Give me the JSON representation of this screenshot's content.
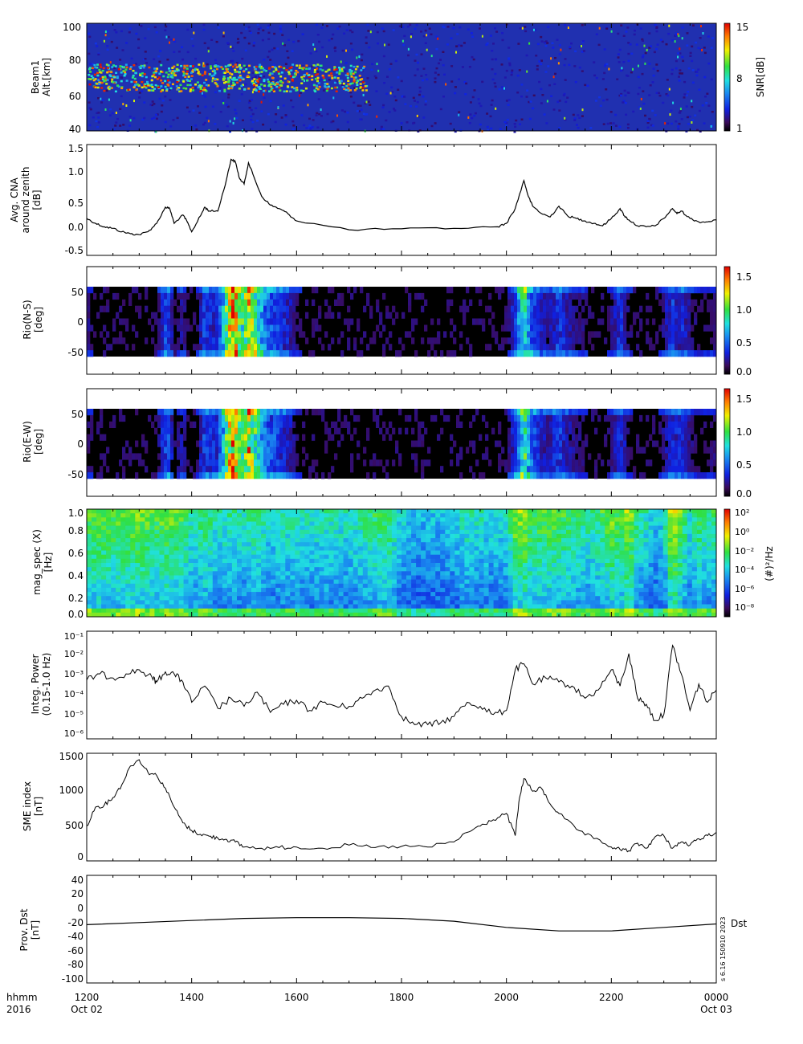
{
  "x_axis": {
    "ticks": [
      "1200",
      "1400",
      "1600",
      "1800",
      "2000",
      "2200",
      "0000"
    ],
    "row_label_top": "hhmm",
    "row_label_bottom": "2016",
    "date_start": "Oct 02",
    "date_end": "Oct 03"
  },
  "panels": {
    "beam": {
      "ylabel": [
        "Beam1",
        "Alt.[km]"
      ],
      "yticks": [
        "40",
        "60",
        "80",
        "100"
      ],
      "colorbar": {
        "label": "SNR[dB]",
        "ticks": [
          "1",
          "8",
          "15"
        ]
      }
    },
    "cna": {
      "ylabel": [
        "Avg. CNA",
        "around zenith",
        "[dB]"
      ],
      "yticks": [
        "-0.5",
        "0.0",
        "0.5",
        "1.0",
        "1.5"
      ]
    },
    "rio_ns": {
      "ylabel": [
        "Rio(N-S)",
        "[deg]"
      ],
      "yticks": [
        "-50",
        "0",
        "50"
      ],
      "colorbar": {
        "ticks": [
          "0.0",
          "0.5",
          "1.0",
          "1.5"
        ]
      }
    },
    "rio_ew": {
      "ylabel": [
        "Rio(E-W)",
        "[deg]"
      ],
      "yticks": [
        "-50",
        "0",
        "50"
      ],
      "colorbar": {
        "ticks": [
          "0.0",
          "0.5",
          "1.0",
          "1.5"
        ]
      }
    },
    "magspec": {
      "ylabel": [
        "mag_spec (X)",
        "[Hz]"
      ],
      "yticks": [
        "0.0",
        "0.2",
        "0.4",
        "0.6",
        "0.8",
        "1.0"
      ],
      "colorbar": {
        "label": "(#)²/Hz",
        "ticks": [
          "10⁻⁸",
          "10⁻⁶",
          "10⁻⁴",
          "10⁻²",
          "10⁰",
          "10²"
        ]
      }
    },
    "power": {
      "ylabel": [
        "Integ. Power",
        "(0.15-1.0 Hz)"
      ],
      "yticks": [
        "10⁻⁶",
        "10⁻⁵",
        "10⁻⁴",
        "10⁻³",
        "10⁻²",
        "10⁻¹"
      ]
    },
    "sme": {
      "ylabel": [
        "SME index",
        "[nT]"
      ],
      "yticks": [
        "0",
        "500",
        "1000",
        "1500"
      ]
    },
    "dst": {
      "ylabel": [
        "Prov. Dst",
        "[nT]"
      ],
      "yticks": [
        "-100",
        "-80",
        "-60",
        "-40",
        "-20",
        "0",
        "20",
        "40"
      ],
      "series_label": "Dst",
      "side_text": "s 6.16 150910 2023"
    }
  },
  "chart_data": [
    {
      "type": "heatmap",
      "ylabel": "Beam1 Alt.[km]",
      "ylim": [
        38,
        102
      ],
      "colorbar": {
        "label": "SNR[dB]",
        "range": [
          0,
          16
        ]
      },
      "description_values": {
        "high_snr_band_alt_km": [
          62,
          78
        ],
        "high_snr_band_time_hhmm": [
          "1200",
          "1720"
        ]
      }
    },
    {
      "type": "line",
      "ylabel": "Avg. CNA around zenith [dB]",
      "ylim": [
        -0.6,
        1.65
      ],
      "x": [
        "1200",
        "1210",
        "1220",
        "1230",
        "1240",
        "1250",
        "1300",
        "1310",
        "1320",
        "1330",
        "1335",
        "1340",
        "1350",
        "1355",
        "1400",
        "1410",
        "1415",
        "1420",
        "1430",
        "1440",
        "1445",
        "1450",
        "1455",
        "1500",
        "1505",
        "1510",
        "1520",
        "1530",
        "1540",
        "1550",
        "1600",
        "1700",
        "1800",
        "1900",
        "1950",
        "2000",
        "2010",
        "2020",
        "2025",
        "2030",
        "2040",
        "2050",
        "2100",
        "2110",
        "2120",
        "2130",
        "2140",
        "2150",
        "2200",
        "2210",
        "2215",
        "2220",
        "2230",
        "2240",
        "2250",
        "2300",
        "2310",
        "2315",
        "2320",
        "2330",
        "2340",
        "2350",
        "2400"
      ],
      "y": [
        0.15,
        0.05,
        -0.02,
        -0.05,
        -0.12,
        -0.16,
        -0.18,
        -0.12,
        0.05,
        0.38,
        0.35,
        0.05,
        0.22,
        0.08,
        -0.12,
        0.2,
        0.38,
        0.3,
        0.3,
        0.95,
        1.35,
        1.3,
        0.95,
        0.85,
        1.28,
        1.05,
        0.6,
        0.42,
        0.35,
        0.25,
        0.1,
        -0.08,
        -0.06,
        -0.05,
        -0.02,
        0.05,
        0.35,
        0.92,
        0.6,
        0.4,
        0.25,
        0.18,
        0.4,
        0.2,
        0.15,
        0.1,
        0.05,
        0.0,
        0.15,
        0.35,
        0.2,
        0.12,
        0.0,
        -0.02,
        0.0,
        0.15,
        0.35,
        0.25,
        0.3,
        0.15,
        0.08,
        0.08,
        0.12
      ]
    },
    {
      "type": "heatmap",
      "ylabel": "Rio(N-S) [deg]",
      "ylim": [
        -90,
        85
      ],
      "data_ylim": [
        -55,
        55
      ],
      "colorbar": {
        "range": [
          0,
          1.65
        ]
      }
    },
    {
      "type": "heatmap",
      "ylabel": "Rio(E-W) [deg]",
      "ylim": [
        -90,
        85
      ],
      "data_ylim": [
        -55,
        55
      ],
      "colorbar": {
        "range": [
          0,
          1.65
        ]
      }
    },
    {
      "type": "heatmap",
      "ylabel": "mag_spec (X) [Hz]",
      "ylim": [
        -0.05,
        1.05
      ],
      "colorbar": {
        "label": "(#)²/Hz",
        "log_range": [
          -9,
          2
        ]
      }
    },
    {
      "type": "line",
      "ylabel": "Integ. Power (0.15-1.0 Hz)",
      "log_scale": true,
      "ylim_log10": [
        -6.2,
        -0.9
      ],
      "x": [
        "1200",
        "1215",
        "1230",
        "1245",
        "1300",
        "1315",
        "1320",
        "1330",
        "1340",
        "1350",
        "1400",
        "1415",
        "1430",
        "1445",
        "1500",
        "1515",
        "1530",
        "1545",
        "1600",
        "1615",
        "1630",
        "1645",
        "1700",
        "1715",
        "1730",
        "1745",
        "1800",
        "1815",
        "1830",
        "1845",
        "1900",
        "1915",
        "1930",
        "1945",
        "2000",
        "2010",
        "2020",
        "2030",
        "2045",
        "2100",
        "2115",
        "2130",
        "2145",
        "2200",
        "2210",
        "2220",
        "2230",
        "2240",
        "2250",
        "2300",
        "2310",
        "2320",
        "2330",
        "2340",
        "2350",
        "2400"
      ],
      "y_log10": [
        -3.3,
        -3.0,
        -3.2,
        -3.0,
        -2.8,
        -3.2,
        -3.4,
        -2.9,
        -3.0,
        -3.4,
        -4.4,
        -3.6,
        -4.7,
        -4.2,
        -4.6,
        -3.9,
        -4.9,
        -4.5,
        -4.3,
        -4.8,
        -4.4,
        -4.6,
        -4.6,
        -4.2,
        -3.8,
        -3.6,
        -5.1,
        -5.5,
        -5.5,
        -5.4,
        -5.1,
        -4.4,
        -4.6,
        -5.0,
        -4.8,
        -2.8,
        -2.5,
        -3.5,
        -3.2,
        -3.4,
        -3.6,
        -4.2,
        -3.8,
        -2.8,
        -3.6,
        -2.0,
        -4.2,
        -4.5,
        -5.3,
        -5.0,
        -1.6,
        -3.0,
        -4.8,
        -3.5,
        -4.4,
        -3.8
      ]
    },
    {
      "type": "line",
      "ylabel": "SME index [nT]",
      "ylim": [
        -100,
        1600
      ],
      "x": [
        "1200",
        "1210",
        "1220",
        "1230",
        "1240",
        "1250",
        "1300",
        "1310",
        "1320",
        "1330",
        "1340",
        "1350",
        "1400",
        "1410",
        "1420",
        "1430",
        "1440",
        "1450",
        "1500",
        "1520",
        "1540",
        "1600",
        "1630",
        "1700",
        "1730",
        "1800",
        "1830",
        "1900",
        "1915",
        "1930",
        "1945",
        "2000",
        "2010",
        "2015",
        "2020",
        "2030",
        "2040",
        "2050",
        "2100",
        "2120",
        "2140",
        "2200",
        "2210",
        "2220",
        "2230",
        "2240",
        "2250",
        "2300",
        "2310",
        "2320",
        "2330",
        "2340",
        "2350",
        "2400"
      ],
      "y": [
        450,
        750,
        780,
        900,
        1100,
        1400,
        1500,
        1300,
        1250,
        1050,
        750,
        500,
        380,
        320,
        290,
        260,
        240,
        200,
        120,
        100,
        110,
        120,
        100,
        150,
        110,
        130,
        120,
        200,
        350,
        450,
        550,
        650,
        300,
        900,
        1200,
        1000,
        1050,
        800,
        650,
        400,
        250,
        120,
        80,
        60,
        180,
        100,
        280,
        300,
        100,
        200,
        150,
        250,
        300,
        350
      ]
    },
    {
      "type": "line",
      "ylabel": "Prov. Dst [nT]",
      "ylim": [
        -105,
        50
      ],
      "x": [
        "1200",
        "1300",
        "1400",
        "1500",
        "1600",
        "1700",
        "1800",
        "1900",
        "2000",
        "2100",
        "2200",
        "2300",
        "2400"
      ],
      "y": [
        -21,
        -18,
        -15,
        -12,
        -11,
        -11,
        -12,
        -16,
        -25,
        -30,
        -30,
        -25,
        -20
      ]
    }
  ]
}
